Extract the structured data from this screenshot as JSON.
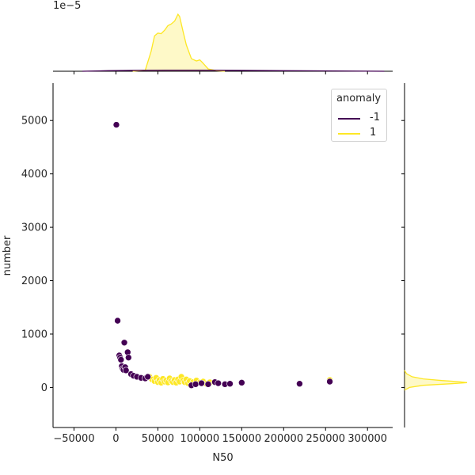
{
  "chart_data": {
    "type": "scatter",
    "title": "",
    "xlabel": "N50",
    "ylabel": "number",
    "xlim": [
      -75000,
      330000
    ],
    "ylim": [
      -750,
      5700
    ],
    "x_ticks": [
      -50000,
      0,
      50000,
      100000,
      150000,
      200000,
      250000,
      300000
    ],
    "x_tick_labels": [
      "−50000",
      "0",
      "50000",
      "100000",
      "150000",
      "200000",
      "250000",
      "300000"
    ],
    "y_ticks": [
      0,
      1000,
      2000,
      3000,
      4000,
      5000
    ],
    "y_tick_labels": [
      "0",
      "1000",
      "2000",
      "3000",
      "4000",
      "5000"
    ],
    "top_marginal_scale_label": "1e−5",
    "grid": false,
    "legend_placement": "top-right",
    "legend": {
      "title": "anomaly",
      "entries": [
        {
          "label": "-1",
          "color": "#440154"
        },
        {
          "label": "1",
          "color": "#fde725"
        }
      ]
    },
    "series": [
      {
        "name": "-1",
        "color": "#440154",
        "x": [
          500,
          2000,
          4000,
          5000,
          6000,
          7000,
          8000,
          9000,
          10000,
          11000,
          12000,
          14000,
          15000,
          18000,
          21000,
          25000,
          30000,
          35000,
          38000,
          90000,
          95000,
          102000,
          110000,
          118000,
          122000,
          130000,
          136000,
          150000,
          219000,
          255000
        ],
        "y": [
          4920,
          1250,
          600,
          560,
          520,
          400,
          350,
          330,
          840,
          380,
          320,
          660,
          560,
          250,
          220,
          200,
          180,
          170,
          200,
          40,
          60,
          80,
          60,
          100,
          80,
          60,
          70,
          90,
          70,
          110
        ]
      },
      {
        "name": "1",
        "color": "#fde725",
        "x": [
          40000,
          43000,
          46000,
          48000,
          50000,
          52000,
          54000,
          56000,
          58000,
          60000,
          62000,
          64000,
          66000,
          68000,
          70000,
          72000,
          74000,
          76000,
          78000,
          80000,
          82000,
          84000,
          86000,
          88000,
          92000,
          96000,
          100000,
          104000,
          108000,
          112000,
          255000
        ],
        "y": [
          200,
          150,
          120,
          180,
          100,
          140,
          90,
          160,
          110,
          130,
          95,
          170,
          120,
          100,
          140,
          90,
          150,
          110,
          200,
          130,
          100,
          150,
          80,
          120,
          100,
          130,
          90,
          110,
          70,
          95,
          140
        ]
      }
    ],
    "marginal_x_density": {
      "series": [
        {
          "name": "1",
          "color": "#fde725",
          "x": [
            20000,
            35000,
            42000,
            46000,
            50000,
            54000,
            58000,
            62000,
            66000,
            70000,
            74000,
            76000,
            80000,
            84000,
            90000,
            96000,
            100000,
            104000,
            110000,
            120000,
            130000
          ],
          "density": [
            0.0,
            0.02,
            0.35,
            0.62,
            0.67,
            0.66,
            0.72,
            0.8,
            0.83,
            0.88,
            1.0,
            0.96,
            0.7,
            0.46,
            0.22,
            0.18,
            0.2,
            0.14,
            0.04,
            0.01,
            0.0
          ]
        },
        {
          "name": "-1",
          "color": "#440154",
          "x": [
            -40000,
            -10000,
            20000,
            60000,
            100000,
            150000,
            200000,
            260000,
            320000
          ],
          "density": [
            0.0,
            0.01,
            0.015,
            0.02,
            0.02,
            0.015,
            0.01,
            0.005,
            0.0
          ]
        }
      ]
    },
    "marginal_y_density": {
      "series": [
        {
          "name": "1",
          "color": "#fde725",
          "y": [
            -50,
            0,
            40,
            70,
            90,
            110,
            130,
            160,
            200,
            260,
            320
          ],
          "density": [
            0.0,
            0.08,
            0.3,
            0.75,
            1.0,
            0.85,
            0.6,
            0.3,
            0.12,
            0.03,
            0.0
          ]
        }
      ]
    }
  }
}
